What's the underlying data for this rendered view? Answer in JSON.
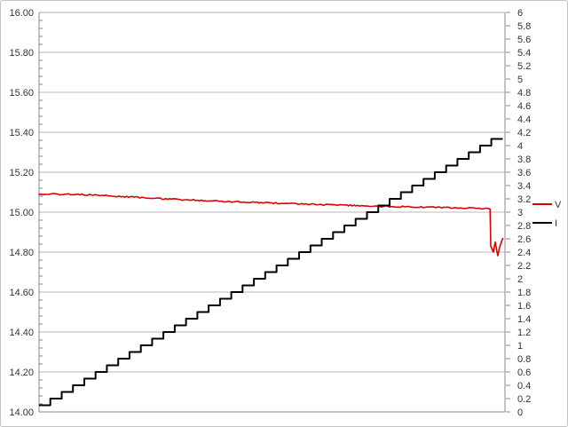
{
  "chart_data": {
    "type": "line",
    "title": "",
    "xlabel": "",
    "x_axis": {
      "tick_labels_visible": false
    },
    "y_axis_left": {
      "min": 14.0,
      "max": 16.0,
      "major_step": 0.2,
      "minor_step": 0.04,
      "labels": [
        "16.00",
        "15.80",
        "15.60",
        "15.40",
        "15.20",
        "15.00",
        "14.80",
        "14.60",
        "14.40",
        "14.20",
        "14.00"
      ]
    },
    "y_axis_right": {
      "min": 0,
      "max": 6,
      "major_step": 0.2,
      "labels": [
        "6",
        "5.8",
        "5.6",
        "5.4",
        "5.2",
        "5",
        "4.8",
        "4.6",
        "4.4",
        "4.2",
        "4",
        "3.8",
        "3.6",
        "3.4",
        "3.2",
        "3",
        "2.8",
        "2.6",
        "2.4",
        "2.2",
        "2",
        "1.8",
        "1.6",
        "1.4",
        "1.2",
        "1",
        "0.8",
        "0.6",
        "0.4",
        "0.2",
        "0"
      ]
    },
    "grid": {
      "horizontal": true,
      "vertical": false
    },
    "series": [
      {
        "name": "V",
        "axis": "left",
        "color": "#dd0000",
        "style": "noisy-line",
        "points": [
          [
            0.0,
            15.09
          ],
          [
            0.025,
            15.091
          ],
          [
            0.05,
            15.089
          ],
          [
            0.075,
            15.09
          ],
          [
            0.1,
            15.087
          ],
          [
            0.14,
            15.083
          ],
          [
            0.18,
            15.078
          ],
          [
            0.22,
            15.073
          ],
          [
            0.26,
            15.068
          ],
          [
            0.3,
            15.063
          ],
          [
            0.34,
            15.059
          ],
          [
            0.38,
            15.055
          ],
          [
            0.42,
            15.052
          ],
          [
            0.46,
            15.049
          ],
          [
            0.5,
            15.046
          ],
          [
            0.54,
            15.043
          ],
          [
            0.58,
            15.04
          ],
          [
            0.62,
            15.037
          ],
          [
            0.66,
            15.034
          ],
          [
            0.7,
            15.031
          ],
          [
            0.74,
            15.029
          ],
          [
            0.78,
            15.027
          ],
          [
            0.82,
            15.025
          ],
          [
            0.86,
            15.023
          ],
          [
            0.9,
            15.021
          ],
          [
            0.935,
            15.019
          ],
          [
            0.966,
            15.017
          ],
          [
            0.968,
            15.015
          ],
          [
            0.9695,
            14.83
          ],
          [
            0.975,
            14.8
          ],
          [
            0.979,
            14.85
          ],
          [
            0.9845,
            14.782
          ],
          [
            0.989,
            14.828
          ],
          [
            0.995,
            14.868
          ]
        ],
        "noise_until_x": 0.966
      },
      {
        "name": "I",
        "axis": "right",
        "color": "#000000",
        "style": "step",
        "level_start": 0.1,
        "level_step": 0.1,
        "level_end": 4.1,
        "num_levels": 41,
        "x_start": 0.0,
        "x_end": 0.995
      }
    ],
    "legend": {
      "position": "right-middle",
      "entries": [
        {
          "label": "V",
          "color": "#dd0000"
        },
        {
          "label": "I",
          "color": "#000000"
        }
      ]
    },
    "colors": {
      "gridline": "#b8b8b8",
      "axis_line": "#888888",
      "top_line": "#aaaaaa",
      "tick": "#888888",
      "label_text": "#333333",
      "background": "#ffffff"
    }
  }
}
